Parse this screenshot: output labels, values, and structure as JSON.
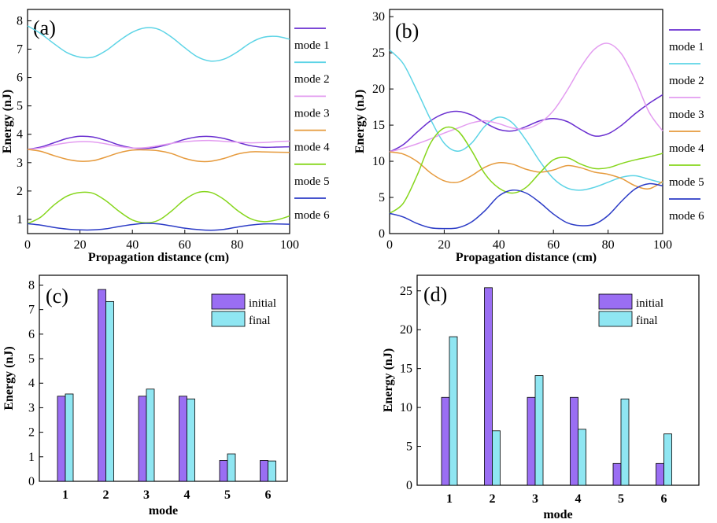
{
  "colors": {
    "mode1": "#6a2fd0",
    "mode2": "#5dd4e6",
    "mode3": "#e39cf0",
    "mode4": "#e69a3c",
    "mode5": "#86d61c",
    "mode6": "#2b3bc6",
    "initial": "#9a6ef3",
    "final": "#8fe6f2"
  },
  "chart_data": [
    {
      "id": "a",
      "type": "line",
      "panel_label": "(a)",
      "xlabel": "Propagation distance (cm)",
      "ylabel": "Energy (nJ)",
      "xlim": [
        0,
        100
      ],
      "ylim": [
        0.5,
        8.4
      ],
      "xticks": [
        "0",
        "20",
        "40",
        "60",
        "80",
        "100"
      ],
      "yticks": [
        "1",
        "2",
        "3",
        "4",
        "5",
        "6",
        "7",
        "8"
      ],
      "legend_position": "right-outside",
      "x": [
        0,
        5,
        10,
        15,
        20,
        25,
        30,
        35,
        40,
        45,
        50,
        55,
        60,
        65,
        70,
        75,
        80,
        85,
        90,
        95,
        100
      ],
      "series": [
        {
          "name": "mode 1",
          "color_key": "mode1",
          "values": [
            3.47,
            3.55,
            3.7,
            3.85,
            3.93,
            3.9,
            3.78,
            3.62,
            3.52,
            3.5,
            3.56,
            3.68,
            3.82,
            3.91,
            3.92,
            3.85,
            3.72,
            3.6,
            3.54,
            3.55,
            3.56
          ]
        },
        {
          "name": "mode 2",
          "color_key": "mode2",
          "values": [
            7.82,
            7.55,
            7.2,
            6.88,
            6.72,
            6.72,
            6.95,
            7.3,
            7.6,
            7.75,
            7.7,
            7.42,
            7.05,
            6.72,
            6.58,
            6.65,
            6.9,
            7.22,
            7.42,
            7.45,
            7.35
          ]
        },
        {
          "name": "mode 3",
          "color_key": "mode3",
          "values": [
            3.47,
            3.52,
            3.62,
            3.7,
            3.74,
            3.73,
            3.66,
            3.57,
            3.52,
            3.53,
            3.6,
            3.68,
            3.74,
            3.77,
            3.78,
            3.75,
            3.72,
            3.7,
            3.71,
            3.74,
            3.76
          ]
        },
        {
          "name": "mode 4",
          "color_key": "mode4",
          "values": [
            3.47,
            3.4,
            3.25,
            3.12,
            3.05,
            3.07,
            3.2,
            3.35,
            3.44,
            3.45,
            3.42,
            3.32,
            3.15,
            3.05,
            3.05,
            3.15,
            3.3,
            3.38,
            3.38,
            3.37,
            3.36
          ]
        },
        {
          "name": "mode 5",
          "color_key": "mode5",
          "values": [
            0.85,
            1.08,
            1.5,
            1.82,
            1.95,
            1.92,
            1.65,
            1.28,
            0.98,
            0.88,
            0.97,
            1.3,
            1.7,
            1.95,
            1.95,
            1.7,
            1.32,
            1.03,
            0.92,
            0.98,
            1.12
          ]
        },
        {
          "name": "mode 6",
          "color_key": "mode6",
          "values": [
            0.85,
            0.8,
            0.72,
            0.66,
            0.63,
            0.63,
            0.67,
            0.75,
            0.82,
            0.86,
            0.84,
            0.77,
            0.69,
            0.64,
            0.62,
            0.65,
            0.73,
            0.8,
            0.84,
            0.84,
            0.83
          ]
        }
      ]
    },
    {
      "id": "b",
      "type": "line",
      "panel_label": "(b)",
      "xlabel": "Propagation distance (cm)",
      "ylabel": "Energy (nJ)",
      "xlim": [
        0,
        100
      ],
      "ylim": [
        0,
        31
      ],
      "xticks": [
        "0",
        "20",
        "40",
        "60",
        "80",
        "100"
      ],
      "yticks": [
        "0",
        "5",
        "10",
        "15",
        "20",
        "25",
        "30"
      ],
      "legend_position": "right-outside",
      "x": [
        0,
        5,
        10,
        15,
        20,
        25,
        30,
        35,
        40,
        45,
        50,
        55,
        60,
        65,
        70,
        75,
        80,
        85,
        90,
        95,
        100
      ],
      "series": [
        {
          "name": "mode 1",
          "color_key": "mode1",
          "values": [
            11.3,
            12.3,
            14.0,
            15.6,
            16.6,
            16.9,
            16.4,
            15.3,
            14.4,
            14.2,
            14.8,
            15.6,
            15.9,
            15.5,
            14.4,
            13.5,
            13.8,
            15.0,
            16.6,
            18.0,
            19.2
          ]
        },
        {
          "name": "mode 2",
          "color_key": "mode2",
          "values": [
            25.4,
            23.5,
            19.8,
            15.8,
            12.5,
            11.4,
            12.5,
            14.9,
            16.1,
            15.3,
            12.9,
            10.0,
            7.6,
            6.3,
            6.0,
            6.4,
            7.1,
            7.8,
            8.0,
            7.5,
            7.0
          ]
        },
        {
          "name": "mode 3",
          "color_key": "mode3",
          "values": [
            11.3,
            11.8,
            12.4,
            13.1,
            13.9,
            14.6,
            15.3,
            15.6,
            15.2,
            14.6,
            14.5,
            15.3,
            17.0,
            19.8,
            23.0,
            25.5,
            26.3,
            24.8,
            21.2,
            16.8,
            14.2
          ]
        },
        {
          "name": "mode 4",
          "color_key": "mode4",
          "values": [
            11.3,
            11.0,
            10.0,
            8.4,
            7.3,
            7.1,
            8.0,
            9.2,
            9.8,
            9.6,
            8.9,
            8.5,
            8.8,
            9.4,
            9.1,
            8.5,
            8.2,
            7.6,
            6.6,
            6.2,
            7.2
          ]
        },
        {
          "name": "mode 5",
          "color_key": "mode5",
          "values": [
            2.8,
            4.2,
            8.0,
            12.5,
            14.6,
            14.2,
            11.5,
            8.2,
            6.3,
            5.6,
            6.4,
            8.4,
            10.2,
            10.5,
            9.6,
            9.0,
            9.1,
            9.7,
            10.2,
            10.6,
            11.1
          ]
        },
        {
          "name": "mode 6",
          "color_key": "mode6",
          "values": [
            2.8,
            2.3,
            1.4,
            0.8,
            0.7,
            0.8,
            1.6,
            3.2,
            5.2,
            6.0,
            5.6,
            4.3,
            2.7,
            1.5,
            1.1,
            1.3,
            2.5,
            4.5,
            6.2,
            6.9,
            6.6
          ]
        }
      ]
    },
    {
      "id": "c",
      "type": "bar",
      "panel_label": "(c)",
      "xlabel": "mode",
      "ylabel": "Energy (nJ)",
      "ylim": [
        0,
        8.4
      ],
      "yticks": [
        "0",
        "1",
        "2",
        "3",
        "4",
        "5",
        "6",
        "7",
        "8"
      ],
      "categories": [
        "1",
        "2",
        "3",
        "4",
        "5",
        "6"
      ],
      "legend_position": "top-right",
      "series": [
        {
          "name": "initial",
          "color_key": "initial",
          "values": [
            3.47,
            7.82,
            3.47,
            3.47,
            0.85,
            0.85
          ]
        },
        {
          "name": "final",
          "color_key": "final",
          "values": [
            3.56,
            7.33,
            3.76,
            3.36,
            1.12,
            0.83
          ]
        }
      ]
    },
    {
      "id": "d",
      "type": "bar",
      "panel_label": "(d)",
      "xlabel": "mode",
      "ylabel": "Energy (nJ)",
      "ylim": [
        0,
        27
      ],
      "yticks": [
        "0",
        "5",
        "10",
        "15",
        "20",
        "25"
      ],
      "categories": [
        "1",
        "2",
        "3",
        "4",
        "5",
        "6"
      ],
      "legend_position": "top-right",
      "series": [
        {
          "name": "initial",
          "color_key": "initial",
          "values": [
            11.3,
            25.4,
            11.3,
            11.3,
            2.8,
            2.8
          ]
        },
        {
          "name": "final",
          "color_key": "final",
          "values": [
            19.1,
            7.0,
            14.1,
            7.2,
            11.1,
            6.6
          ]
        }
      ]
    }
  ]
}
